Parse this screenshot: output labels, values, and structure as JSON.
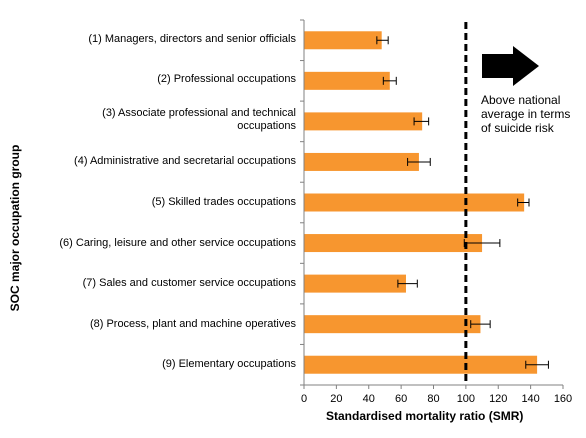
{
  "chart_data": {
    "type": "bar",
    "orientation": "horizontal",
    "ylabel": "SOC major occupation group",
    "xlabel": "Standardised mortality ratio (SMR)",
    "xlim": [
      0,
      160
    ],
    "xticks": [
      0,
      20,
      40,
      60,
      80,
      100,
      120,
      140,
      160
    ],
    "reference_line": 100,
    "bar_color": "#F7962F",
    "categories": [
      "(1) Managers, directors and senior officials",
      "(2) Professional occupations",
      "(3) Associate professional and technical occupations",
      "(4) Administrative and secretarial occupations",
      "(5) Skilled trades occupations",
      "(6) Caring, leisure and other service occupations",
      "(7) Sales and customer service occupations",
      "(8) Process, plant and machine operatives",
      "(9) Elementary occupations"
    ],
    "values": [
      48,
      53,
      73,
      71,
      136,
      110,
      63,
      109,
      144
    ],
    "error_low": [
      45,
      49,
      68,
      64,
      132,
      99,
      58,
      103,
      137
    ],
    "error_high": [
      52,
      57,
      77,
      78,
      139,
      121,
      70,
      115,
      151
    ],
    "annotation": "Above national average in terms of suicide risk"
  }
}
